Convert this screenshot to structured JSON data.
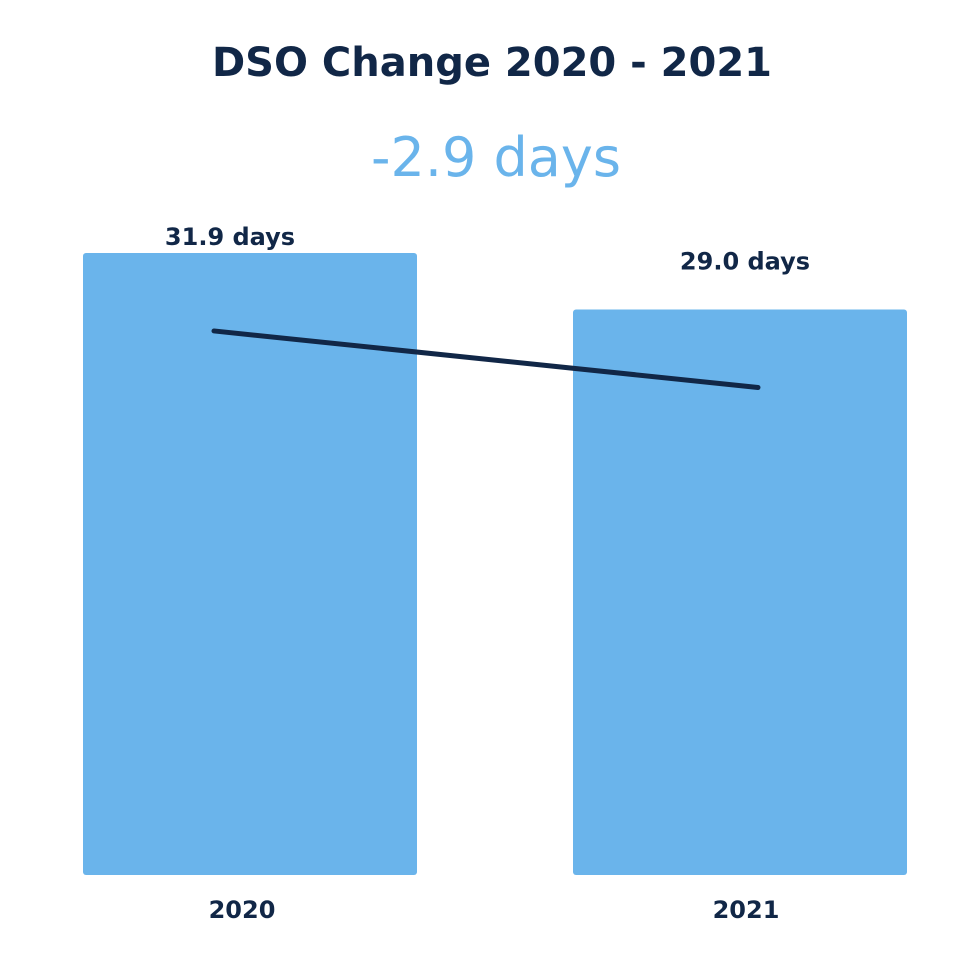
{
  "chart_data": {
    "type": "bar",
    "title": "DSO Change 2020 - 2021",
    "subtitle": "-2.9 days",
    "categories": [
      "2020",
      "2021"
    ],
    "values": [
      31.9,
      29.0
    ],
    "value_labels": [
      "31.9 days",
      "29.0 days"
    ],
    "trend_line": true,
    "ylim": [
      0,
      35
    ],
    "grid": false,
    "legend": "none",
    "colors": {
      "bar": "#6ab4eb",
      "line": "#112747",
      "title": "#112747",
      "subtitle": "#6ab4eb",
      "label": "#112747"
    }
  }
}
